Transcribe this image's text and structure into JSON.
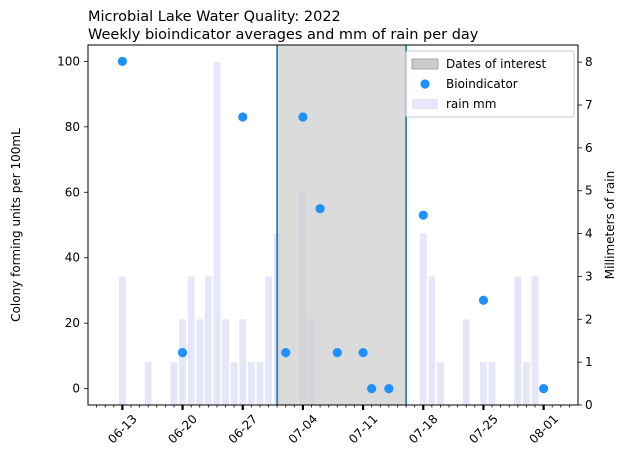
{
  "chart_data": {
    "type": "scatter",
    "title": "Microbial Lake Water Quality: 2022",
    "subtitle": "Weekly bioindicator averages and mm of rain per day",
    "ylabel": "Colony forming units per 100mL",
    "y2label": "Millimeters of rain",
    "xlim": [
      "2022-06-09",
      "2022-08-05"
    ],
    "ylim": [
      -5,
      105
    ],
    "y2lim": [
      0,
      8.4
    ],
    "x_ticks": [
      {
        "date": "2022-06-13",
        "label": "06-13"
      },
      {
        "date": "2022-06-20",
        "label": "06-20"
      },
      {
        "date": "2022-06-27",
        "label": "06-27"
      },
      {
        "date": "2022-07-04",
        "label": "07-04"
      },
      {
        "date": "2022-07-11",
        "label": "07-11"
      },
      {
        "date": "2022-07-18",
        "label": "07-18"
      },
      {
        "date": "2022-07-25",
        "label": "07-25"
      },
      {
        "date": "2022-08-01",
        "label": "08-01"
      }
    ],
    "y_ticks": [
      0,
      20,
      40,
      60,
      80,
      100
    ],
    "y2_ticks": [
      0,
      1,
      2,
      3,
      4,
      5,
      6,
      7,
      8
    ],
    "legend": {
      "position": "top-right",
      "entries": [
        "Dates of interest",
        "Bioindicator",
        "rain mm"
      ]
    },
    "interest_period": {
      "name": "Dates of interest",
      "start": "2022-07-01",
      "end": "2022-07-16",
      "color": "#cccccc",
      "edge_color": "#1f77b4"
    },
    "bioindicator": {
      "name": "Bioindicator",
      "color": "#1e90ff",
      "points": [
        {
          "date": "2022-06-13",
          "value": 100
        },
        {
          "date": "2022-06-20",
          "value": 11
        },
        {
          "date": "2022-06-27",
          "value": 83
        },
        {
          "date": "2022-07-02",
          "value": 11
        },
        {
          "date": "2022-07-04",
          "value": 83
        },
        {
          "date": "2022-07-06",
          "value": 55
        },
        {
          "date": "2022-07-08",
          "value": 11
        },
        {
          "date": "2022-07-11",
          "value": 11
        },
        {
          "date": "2022-07-12",
          "value": 0
        },
        {
          "date": "2022-07-14",
          "value": 0
        },
        {
          "date": "2022-07-18",
          "value": 53
        },
        {
          "date": "2022-07-25",
          "value": 27
        },
        {
          "date": "2022-08-01",
          "value": 0
        }
      ]
    },
    "rain": {
      "name": "rain mm",
      "color": "#e6e6fa",
      "days": [
        {
          "date": "2022-06-13",
          "value": 3
        },
        {
          "date": "2022-06-16",
          "value": 1
        },
        {
          "date": "2022-06-19",
          "value": 1
        },
        {
          "date": "2022-06-20",
          "value": 2
        },
        {
          "date": "2022-06-21",
          "value": 3
        },
        {
          "date": "2022-06-22",
          "value": 2
        },
        {
          "date": "2022-06-23",
          "value": 3
        },
        {
          "date": "2022-06-24",
          "value": 8
        },
        {
          "date": "2022-06-25",
          "value": 2
        },
        {
          "date": "2022-06-26",
          "value": 1
        },
        {
          "date": "2022-06-27",
          "value": 2
        },
        {
          "date": "2022-06-28",
          "value": 1
        },
        {
          "date": "2022-06-29",
          "value": 1
        },
        {
          "date": "2022-06-30",
          "value": 3
        },
        {
          "date": "2022-07-01",
          "value": 4
        },
        {
          "date": "2022-07-04",
          "value": 5
        },
        {
          "date": "2022-07-05",
          "value": 2
        },
        {
          "date": "2022-07-18",
          "value": 4
        },
        {
          "date": "2022-07-19",
          "value": 3
        },
        {
          "date": "2022-07-20",
          "value": 1
        },
        {
          "date": "2022-07-23",
          "value": 2
        },
        {
          "date": "2022-07-25",
          "value": 1
        },
        {
          "date": "2022-07-26",
          "value": 1
        },
        {
          "date": "2022-07-29",
          "value": 3
        },
        {
          "date": "2022-07-30",
          "value": 1
        },
        {
          "date": "2022-07-31",
          "value": 3
        }
      ]
    }
  }
}
